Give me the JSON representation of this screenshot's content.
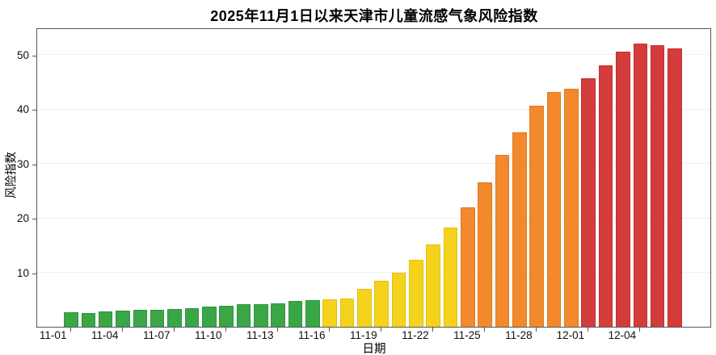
{
  "page": {
    "background": "#ffffff"
  },
  "chart_data": {
    "type": "bar",
    "title": "2025年11月1日以来天津市儿童流感气象风险指数",
    "xlabel": "日期",
    "ylabel": "风险指数",
    "ylim": [
      0,
      55
    ],
    "yticks": [
      10,
      20,
      30,
      40,
      50
    ],
    "grid": true,
    "legend": "none",
    "xtick_labels": [
      "11-01",
      "11-04",
      "11-07",
      "11-10",
      "11-13",
      "11-16",
      "11-19",
      "11-22",
      "11-25",
      "11-28",
      "12-01",
      "12-04"
    ],
    "categories": [
      "11-01",
      "11-02",
      "11-03",
      "11-04",
      "11-05",
      "11-06",
      "11-07",
      "11-08",
      "11-09",
      "11-10",
      "11-11",
      "11-12",
      "11-13",
      "11-14",
      "11-15",
      "11-16",
      "11-17",
      "11-18",
      "11-19",
      "11-20",
      "11-21",
      "11-22",
      "11-23",
      "11-24",
      "11-25",
      "11-26",
      "11-27",
      "11-28",
      "11-29",
      "11-30",
      "12-01",
      "12-02",
      "12-03",
      "12-04",
      "12-05",
      "12-06",
      "12-07"
    ],
    "values": [
      0,
      2.6,
      2.5,
      2.8,
      2.9,
      3.1,
      3.1,
      3.3,
      3.4,
      3.7,
      3.9,
      4.1,
      4.2,
      4.3,
      4.7,
      4.9,
      5.0,
      5.2,
      6.9,
      8.4,
      9.9,
      12.3,
      15.1,
      18.3,
      22.0,
      26.6,
      31.6,
      35.8,
      40.6,
      43.1,
      43.7,
      45.6,
      48.0,
      50.6,
      52.1,
      51.8,
      51.2
    ],
    "levels": [
      "none",
      "green",
      "green",
      "green",
      "green",
      "green",
      "green",
      "green",
      "green",
      "green",
      "green",
      "green",
      "green",
      "green",
      "green",
      "green",
      "yellow",
      "yellow",
      "yellow",
      "yellow",
      "yellow",
      "yellow",
      "yellow",
      "yellow",
      "orange",
      "orange",
      "orange",
      "orange",
      "orange",
      "orange",
      "orange",
      "red",
      "red",
      "red",
      "red",
      "red",
      "red"
    ],
    "level_colors": {
      "none": "transparent",
      "green": "#3aa747",
      "yellow": "#f5d31d",
      "orange": "#f28a2d",
      "red": "#d43c3c"
    },
    "level_borders": {
      "none": "transparent",
      "green": "#2f9340",
      "yellow": "#e2be10",
      "orange": "#de7a20",
      "red": "#c23030"
    }
  }
}
